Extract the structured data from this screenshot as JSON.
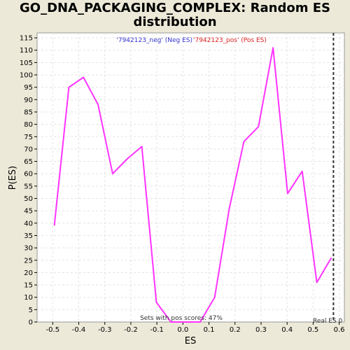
{
  "chart_data": {
    "type": "line",
    "title_line1": "GO_DNA_PACKAGING_COMPLEX: Random ES",
    "title_line2": "distribution",
    "xlabel": "ES",
    "ylabel": "P(ES)",
    "xlim": [
      -0.56,
      0.62
    ],
    "ylim": [
      0,
      117
    ],
    "xticks": [
      -0.5,
      -0.4,
      -0.3,
      -0.2,
      -0.1,
      0.0,
      0.1,
      0.2,
      0.3,
      0.4,
      0.5,
      0.6
    ],
    "xtick_labels": [
      "-0.5",
      "-0.4",
      "-0.3",
      "-0.2",
      "-0.1",
      "0.0",
      "0.1",
      "0.2",
      "0.3",
      "0.4",
      "0.5",
      "0.6"
    ],
    "yticks": [
      0,
      5,
      10,
      15,
      20,
      25,
      30,
      35,
      40,
      45,
      50,
      55,
      60,
      65,
      70,
      75,
      80,
      85,
      90,
      95,
      100,
      105,
      110,
      115
    ],
    "grid": true,
    "legend": {
      "neg_label": "'7942123_neg' (Neg ES)",
      "pos_label": "'7942123_pos' (Pos ES)",
      "neg_color": "#3333cc",
      "pos_color": "#dd2222",
      "placement": "top-center"
    },
    "series": [
      {
        "color": "#ff33ff",
        "x": [
          -0.494,
          -0.438,
          -0.382,
          -0.326,
          -0.27,
          -0.214,
          -0.158,
          -0.102,
          -0.046,
          0.01,
          0.066,
          0.122,
          0.178,
          0.234,
          0.29,
          0.346,
          0.402,
          0.458,
          0.514,
          0.57
        ],
        "y": [
          39,
          95,
          99,
          88,
          60,
          66,
          71,
          8,
          0,
          0,
          0,
          10,
          46,
          73,
          79,
          111,
          52,
          61,
          16,
          26
        ]
      }
    ],
    "real_es": 0.578,
    "annotations": {
      "sets_text": "Sets with pos scores: 47%",
      "real_text": "Real ES 0"
    }
  }
}
